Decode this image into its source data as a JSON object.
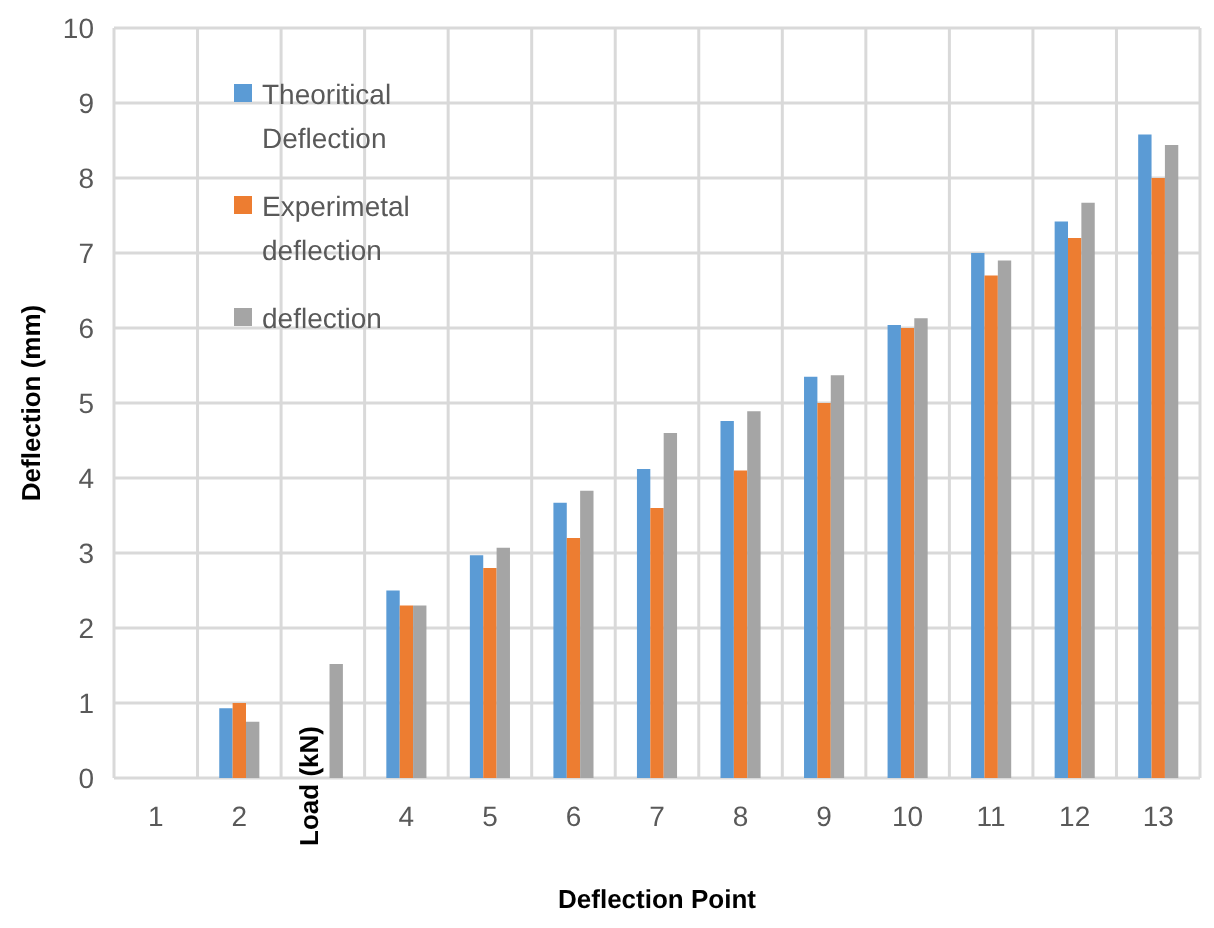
{
  "chart_data": {
    "type": "bar",
    "xlabel": "Deflection Point",
    "ylabel": "Deflection (mm)",
    "categories": [
      "1",
      "2",
      null,
      "4",
      "5",
      "6",
      "7",
      "8",
      "9",
      "10",
      "11",
      "12",
      "13"
    ],
    "series": [
      {
        "name": "Theoritical Deflection",
        "color": "#5b9bd5",
        "values": [
          0,
          0.93,
          null,
          2.5,
          2.97,
          3.67,
          4.12,
          4.76,
          5.35,
          6.04,
          7.0,
          7.42,
          8.58
        ]
      },
      {
        "name": "Experimetal deflection",
        "color": "#ed7d31",
        "values": [
          0,
          1.0,
          null,
          2.3,
          2.8,
          3.2,
          3.6,
          4.1,
          5.0,
          6.0,
          6.7,
          7.2,
          8.0
        ]
      },
      {
        "name": "deflection",
        "color": "#a5a5a5",
        "values": [
          0,
          0.75,
          1.52,
          2.3,
          3.07,
          3.83,
          4.6,
          4.89,
          5.37,
          6.13,
          6.9,
          7.67,
          8.44
        ]
      }
    ],
    "ylim": [
      0,
      10
    ],
    "yticks": [
      0,
      1,
      2,
      3,
      4,
      5,
      6,
      7,
      8,
      9,
      10
    ],
    "grid": true,
    "legend": "top left",
    "annotations": [
      "Load (kN)"
    ]
  }
}
